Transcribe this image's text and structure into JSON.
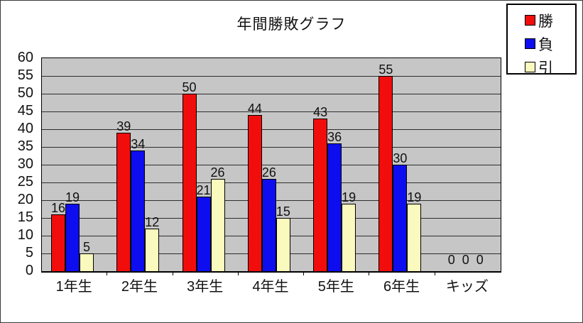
{
  "window": {
    "bg": "#ffffff",
    "border_color": "#3a3a3a"
  },
  "chart_data": {
    "type": "bar",
    "title": "年間勝敗グラフ",
    "categories": [
      "1年生",
      "2年生",
      "3年生",
      "4年生",
      "5年生",
      "6年生",
      "キッズ"
    ],
    "series": [
      {
        "name": "勝",
        "color": "#f20d0d",
        "values": [
          16,
          39,
          50,
          44,
          43,
          55,
          0
        ]
      },
      {
        "name": "負",
        "color": "#0d0df0",
        "values": [
          19,
          34,
          21,
          26,
          36,
          30,
          0
        ]
      },
      {
        "name": "引",
        "color": "#fafabe",
        "values": [
          5,
          12,
          26,
          15,
          19,
          19,
          0
        ]
      }
    ],
    "xlabel": "",
    "ylabel": "",
    "ylim": [
      0,
      60
    ],
    "yticks": [
      0,
      5,
      10,
      15,
      20,
      25,
      30,
      35,
      40,
      45,
      50,
      55,
      60
    ],
    "grid": true,
    "show_value_labels": true,
    "legend_position": "top-right",
    "plot_bg": "#c6c6c6",
    "gridline_color": "#2e2e2e",
    "axis_color": "#000000",
    "label_color": "#111111"
  }
}
